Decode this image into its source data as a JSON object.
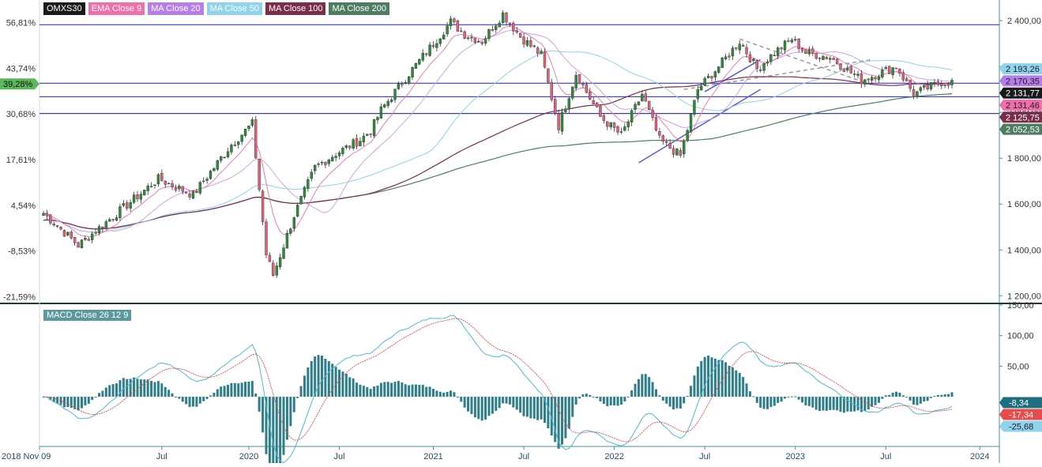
{
  "chart_data": [
    {
      "type": "candlestick",
      "legend": [
        {
          "label": "OMXS30",
          "color": "#1a1a1a"
        },
        {
          "label": "EMA Close 9",
          "color": "#f06ea9"
        },
        {
          "label": "MA Close 20",
          "color": "#b57ee8"
        },
        {
          "label": "MA Close 50",
          "color": "#8fd3ec"
        },
        {
          "label": "MA Close 100",
          "color": "#7a2e4a"
        },
        {
          "label": "MA Close 200",
          "color": "#4f7d63"
        }
      ],
      "x_ticks": [
        "2018 Nov 09",
        "Jul",
        "2020",
        "Jul",
        "2021",
        "Jul",
        "2022",
        "Jul",
        "2023",
        "Jul",
        "2024"
      ],
      "y_right_ticks": [
        "2 400,00",
        "2 200,00",
        "2 000,00",
        "1 800,00",
        "1 600,00",
        "1 400,00",
        "1 200,00"
      ],
      "y_right_values": [
        2400,
        2200,
        2000,
        1800,
        1600,
        1400,
        1200
      ],
      "y_left_ticks": [
        "56,81%",
        "43,74%",
        "30,68%",
        "17,61%",
        "4,54%",
        "-8,53%",
        "-21,59%"
      ],
      "y_left_badge": {
        "label": "39,28%",
        "color": "#5cb85c"
      },
      "ylim": [
        1170,
        2490
      ],
      "horizontal_lines": [
        2382,
        2127,
        2068,
        1995
      ],
      "price_badges": [
        {
          "label": "2 193,26",
          "value": 2193.26,
          "color": "#8fd3ec"
        },
        {
          "label": "2 170,35",
          "value": 2170.35,
          "color": "#b57ee8"
        },
        {
          "label": "2 131,77",
          "value": 2131.77,
          "color": "#1a1a1a"
        },
        {
          "label": "2 131,46",
          "value": 2131.46,
          "color": "#f06ea9"
        },
        {
          "label": "2 125,75",
          "value": 2125.75,
          "color": "#7a2e4a"
        },
        {
          "label": "2 052,53",
          "value": 2052.53,
          "color": "#4f7d63"
        }
      ],
      "anchors_x": [
        0,
        10,
        33,
        43,
        54,
        60,
        64,
        66,
        72,
        78,
        84,
        91,
        94,
        97,
        104,
        112,
        117,
        121,
        126,
        132,
        137,
        143,
        148,
        153,
        160,
        166,
        172,
        177,
        183,
        188,
        194,
        200,
        205,
        210,
        215,
        219,
        226,
        235,
        245,
        250,
        258
      ],
      "anchors_close": [
        1560,
        1420,
        1710,
        1640,
        1860,
        1950,
        1380,
        1290,
        1550,
        1760,
        1820,
        1880,
        1920,
        2010,
        2150,
        2300,
        2395,
        2340,
        2310,
        2430,
        2330,
        2250,
        1940,
        2170,
        1980,
        1900,
        2080,
        1880,
        1810,
        2100,
        2200,
        2310,
        2190,
        2260,
        2320,
        2260,
        2240,
        2140,
        2200,
        2080,
        2131.77
      ]
    },
    {
      "type": "macd",
      "legend": "MACD Close 26 12 9",
      "y_ticks": [
        "150,00",
        "100,00",
        "50,00",
        "-50,00"
      ],
      "y_values": [
        150,
        100,
        50,
        -50
      ],
      "ylim": [
        -80,
        150
      ],
      "value_badges": [
        {
          "label": "-8,34",
          "value": -8.34,
          "color": "#1d6f80"
        },
        {
          "label": "-17,34",
          "value": -17.34,
          "color": "#e74c4c"
        },
        {
          "label": "-25,68",
          "value": -25.68,
          "color": "#8fd3ec"
        }
      ]
    }
  ]
}
